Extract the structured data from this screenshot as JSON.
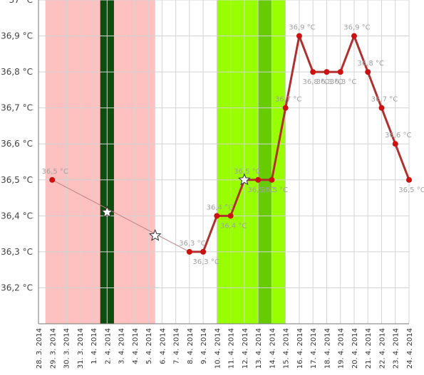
{
  "chart_data": {
    "type": "line",
    "title": "",
    "xlabel": "",
    "ylabel": "",
    "ylim": [
      36.1,
      37.0
    ],
    "yticks": [
      {
        "v": 36.2,
        "label": "36,2 °C"
      },
      {
        "v": 36.3,
        "label": "36,3 °C"
      },
      {
        "v": 36.4,
        "label": "36,4 °C"
      },
      {
        "v": 36.5,
        "label": "36,5 °C"
      },
      {
        "v": 36.6,
        "label": "36,6 °C"
      },
      {
        "v": 36.7,
        "label": "36,7 °C"
      },
      {
        "v": 36.8,
        "label": "36,8 °C"
      },
      {
        "v": 36.9,
        "label": "36,9 °C"
      },
      {
        "v": 37.0,
        "label": "37 °C"
      }
    ],
    "categories": [
      "28. 3. 2014",
      "29. 3. 2014",
      "30. 3. 2014",
      "31. 3. 2014",
      "1. 4. 2014",
      "2. 4. 2014",
      "3. 4. 2014",
      "4. 4. 2014",
      "5. 4. 2014",
      "6. 4. 2014",
      "7. 4. 2014",
      "8. 4. 2014",
      "9. 4. 2014",
      "10. 4. 2014",
      "11. 4. 2014",
      "12. 4. 2014",
      "13. 4. 2014",
      "14. 4. 2014",
      "15. 4. 2014",
      "16. 4. 2014",
      "17. 4. 2014",
      "18. 4. 2014",
      "19. 4. 2014",
      "20. 4. 2014",
      "21. 4. 2014",
      "22. 4. 2014",
      "23. 4. 2014",
      "24. 4. 2014"
    ],
    "series": [
      {
        "values": [
          null,
          36.5,
          null,
          null,
          null,
          null,
          null,
          null,
          null,
          null,
          null,
          36.3,
          36.3,
          36.4,
          36.4,
          36.5,
          36.5,
          36.5,
          36.7,
          36.9,
          36.8,
          36.8,
          36.8,
          36.9,
          36.8,
          36.7,
          36.6,
          36.5
        ],
        "labels": [
          "",
          "36,5 °C",
          "",
          "",
          "",
          "",
          "",
          "",
          "",
          "",
          "",
          "36,3 °C",
          "36,3 °C",
          "36,4 °C",
          "36,4 °C",
          "36,5 °C",
          "36,5 °C",
          "36,5 °C",
          "36,7 °C",
          "36,9 °C",
          "36,8 °C",
          "36,8 °C",
          "36,8 °C",
          "36,9 °C",
          "36,8 °C",
          "36,7 °C",
          "36,6 °C",
          "36,5 °C"
        ]
      }
    ],
    "markers": [
      {
        "index": 5,
        "value": 36.41,
        "shape": "star"
      },
      {
        "index": 8.5,
        "value": 36.345,
        "shape": "star"
      },
      {
        "index": 15,
        "value": 36.5,
        "shape": "star"
      }
    ],
    "bands": [
      {
        "from": 0.5,
        "to": 8.5,
        "color": "#ffc0c0"
      },
      {
        "from": 4.5,
        "to": 5.5,
        "color": "#0d4d0d"
      },
      {
        "from": 13.0,
        "to": 18.0,
        "color": "#99ff00"
      },
      {
        "from": 16.0,
        "to": 17.0,
        "color": "#66cc00"
      }
    ],
    "colors": {
      "line": "#b03030",
      "connector": "#c08080",
      "point": "#cc1111",
      "grid": "#d4d4d4",
      "axis": "#777777"
    },
    "grid": true
  }
}
